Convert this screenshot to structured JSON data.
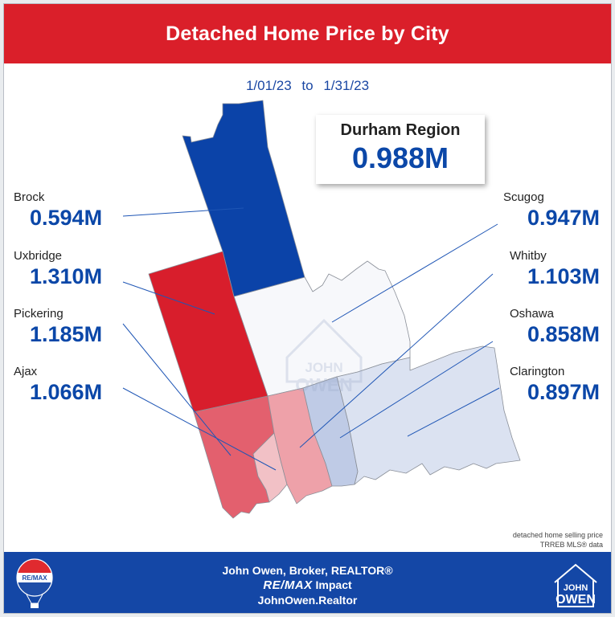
{
  "header": {
    "title": "Detached Home Price by City"
  },
  "date_range": {
    "start": "1/01/23",
    "separator": "to",
    "end": "1/31/23"
  },
  "region": {
    "name": "Durham Region",
    "value": "0.988M"
  },
  "cities": [
    {
      "name": "Brock",
      "value": "0.594M",
      "color": "#0b43a8"
    },
    {
      "name": "Uxbridge",
      "value": "1.310M",
      "color": "#d81e2c"
    },
    {
      "name": "Pickering",
      "value": "1.185M",
      "color": "#e3606e"
    },
    {
      "name": "Ajax",
      "value": "1.066M",
      "color": "#f2c1c6"
    },
    {
      "name": "Scugog",
      "value": "0.947M",
      "color": "#f7f8fb"
    },
    {
      "name": "Whitby",
      "value": "1.103M",
      "color": "#eea1a9"
    },
    {
      "name": "Oshawa",
      "value": "0.858M",
      "color": "#bfcbe6"
    },
    {
      "name": "Clarington",
      "value": "0.897M",
      "color": "#dbe2f1"
    }
  ],
  "watermark": {
    "line1": "JOHN",
    "line2": "OWEN"
  },
  "source_note": {
    "line1": "detached home selling price",
    "line2": "TRREB MLS® data"
  },
  "footer": {
    "line1": "John Owen, Broker, REALTOR®",
    "brand": "RE/MAX",
    "brand_suffix": "Impact",
    "line3": "JohnOwen.Realtor",
    "remax_logo_text": "RE/MAX",
    "logo_line1": "JOHN",
    "logo_line2": "OWEN"
  },
  "colors": {
    "header": "#da1f2a",
    "footer": "#1447a6",
    "value_text": "#0b47a8"
  }
}
